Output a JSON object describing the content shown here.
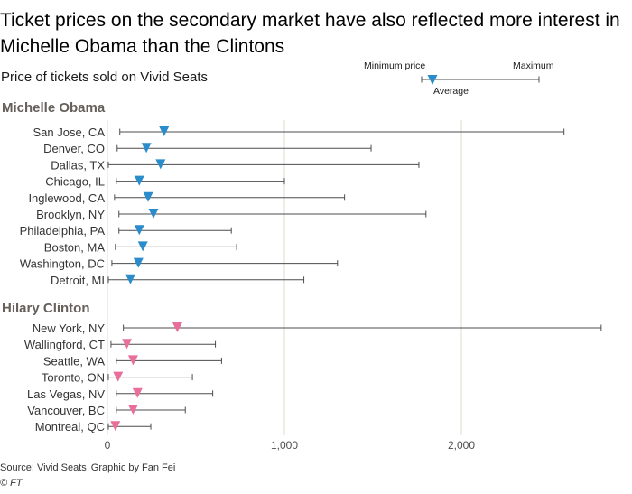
{
  "chart_data": {
    "type": "range_dot",
    "title": "Ticket prices on the secondary market have also reflected more interest in Michelle Obama than the Clintons",
    "subtitle": "Price of tickets sold on Vivid Seats",
    "key": {
      "min_label": "Minimum price",
      "max_label": "Maximum",
      "avg_label": "Average"
    },
    "x_ticks": [
      0,
      1000,
      2000
    ],
    "x_tick_labels": [
      "0",
      "1,000",
      "2,000"
    ],
    "xlim": [
      0,
      2800
    ],
    "grid": true,
    "groups": [
      {
        "name": "Michelle Obama",
        "marker_color": "#2a8ccb",
        "rows": [
          {
            "label": "San Jose, CA",
            "min": 70,
            "avg": 320,
            "max": 2580
          },
          {
            "label": "Denver, CO",
            "min": 55,
            "avg": 220,
            "max": 1490
          },
          {
            "label": "Dallas, TX",
            "min": 5,
            "avg": 300,
            "max": 1760
          },
          {
            "label": "Chicago, IL",
            "min": 50,
            "avg": 180,
            "max": 1000
          },
          {
            "label": "Inglewood, CA",
            "min": 40,
            "avg": 230,
            "max": 1340
          },
          {
            "label": "Brooklyn, NY",
            "min": 65,
            "avg": 260,
            "max": 1800
          },
          {
            "label": "Philadelphia, PA",
            "min": 65,
            "avg": 180,
            "max": 700
          },
          {
            "label": "Boston, MA",
            "min": 45,
            "avg": 200,
            "max": 730
          },
          {
            "label": "Washington, DC",
            "min": 25,
            "avg": 175,
            "max": 1300
          },
          {
            "label": "Detroit, MI",
            "min": 5,
            "avg": 130,
            "max": 1110
          }
        ]
      },
      {
        "name": "Hilary Clinton",
        "marker_color": "#e96e9c",
        "rows": [
          {
            "label": "New York, NY",
            "min": 90,
            "avg": 395,
            "max": 2790
          },
          {
            "label": "Wallingford, CT",
            "min": 20,
            "avg": 110,
            "max": 610
          },
          {
            "label": "Seattle, WA",
            "min": 50,
            "avg": 145,
            "max": 645
          },
          {
            "label": "Toronto, ON",
            "min": 5,
            "avg": 60,
            "max": 480
          },
          {
            "label": "Las Vegas, NV",
            "min": 50,
            "avg": 170,
            "max": 595
          },
          {
            "label": "Vancouver, BC",
            "min": 50,
            "avg": 145,
            "max": 440
          },
          {
            "label": "Montreal, QC",
            "min": 5,
            "avg": 45,
            "max": 245
          }
        ]
      }
    ]
  },
  "footer": {
    "source": "Source: Vivid Seats",
    "graphic": "Graphic by Fan Fei",
    "credit": "© FT"
  },
  "colors": {
    "grid": "#e0dbd3",
    "range_line": "#4d4d4d",
    "group_label": "#66605a",
    "axis_text": "#4d4d4d"
  }
}
